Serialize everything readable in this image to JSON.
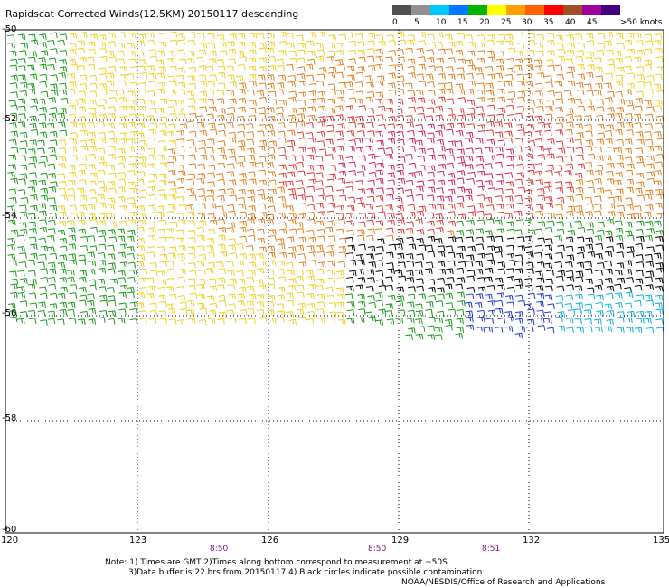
{
  "title": "Rapidscat Corrected Winds(12.5KM) 20150117 descending",
  "scale": {
    "labels": [
      "0",
      "5",
      "10",
      "15",
      "20",
      "25",
      "30",
      "35",
      "40",
      "45",
      ">50 knots"
    ],
    "colors": [
      "#505050",
      "#909090",
      "#00c8ff",
      "#0078ff",
      "#00b400",
      "#ffff00",
      "#ffa000",
      "#ff6000",
      "#ff0000",
      "#a05028",
      "#a000a0",
      "#400080"
    ]
  },
  "axes": {
    "x_ticks": [
      "120",
      "123",
      "126",
      "129",
      "132",
      "135"
    ],
    "y_ticks": [
      "-50",
      "-52",
      "-54",
      "-56",
      "-58",
      "-60"
    ]
  },
  "times": [
    "8:50",
    "8:50",
    "8:51"
  ],
  "notes": [
    "Note: 1) Times are GMT 2)Times along bottom correspond to measurement at ~50S",
    "3)Data buffer is 22 hrs from 20150117 4) Black circles indicate possible contamination"
  ],
  "credit": "NOAA/NESDIS/Office of Research and Applications",
  "wind_colors": {
    "green": "#1a9a1a",
    "yellow": "#f0d020",
    "orange": "#e08020",
    "red": "#e03a3a",
    "magenta": "#d02060",
    "black": "#000000",
    "blue": "#1e3ad0",
    "cyan": "#10b0e0"
  }
}
